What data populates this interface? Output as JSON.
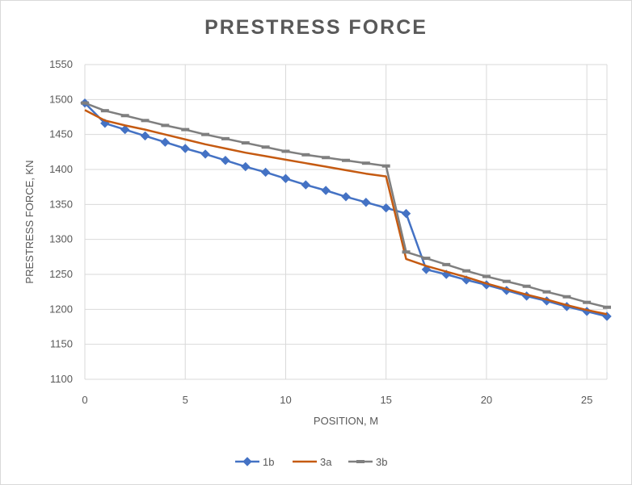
{
  "chart_data": {
    "type": "line",
    "title": "PRESTRESS FORCE",
    "xlabel": "POSITION, M",
    "ylabel": "PRESTRESS FORCE, KN",
    "xlim": [
      0,
      26
    ],
    "ylim": [
      1100,
      1550
    ],
    "xticks": [
      0,
      5,
      10,
      15,
      20,
      25
    ],
    "yticks": [
      1100,
      1150,
      1200,
      1250,
      1300,
      1350,
      1400,
      1450,
      1500,
      1550
    ],
    "grid": true,
    "legend_position": "bottom",
    "series": [
      {
        "name": "1b",
        "color": "#4472c4",
        "marker": "diamond",
        "x": [
          0,
          1,
          2,
          3,
          4,
          5,
          6,
          7,
          8,
          9,
          10,
          11,
          12,
          13,
          14,
          15,
          16,
          17,
          18,
          19,
          20,
          21,
          22,
          23,
          24,
          25,
          26
        ],
        "y": [
          1495,
          1466,
          1457,
          1448,
          1439,
          1430,
          1422,
          1413,
          1404,
          1396,
          1387,
          1378,
          1370,
          1361,
          1353,
          1345,
          1337,
          1257,
          1250,
          1242,
          1235,
          1227,
          1219,
          1212,
          1204,
          1197,
          1190
        ]
      },
      {
        "name": "3a",
        "color": "#c55a11",
        "marker": "none",
        "x": [
          0,
          1,
          2,
          3,
          4,
          5,
          6,
          7,
          8,
          9,
          10,
          11,
          12,
          13,
          14,
          15,
          16,
          17,
          18,
          19,
          20,
          21,
          22,
          23,
          24,
          25,
          26
        ],
        "y": [
          1485,
          1470,
          1463,
          1457,
          1450,
          1443,
          1436,
          1430,
          1424,
          1419,
          1414,
          1409,
          1404,
          1399,
          1394,
          1390,
          1272,
          1262,
          1254,
          1246,
          1237,
          1229,
          1221,
          1214,
          1206,
          1199,
          1193
        ]
      },
      {
        "name": "3b",
        "color": "#7f7f7f",
        "marker": "dash",
        "x": [
          0,
          1,
          2,
          3,
          4,
          5,
          6,
          7,
          8,
          9,
          10,
          11,
          12,
          13,
          14,
          15,
          16,
          17,
          18,
          19,
          20,
          21,
          22,
          23,
          24,
          25,
          26
        ],
        "y": [
          1495,
          1484,
          1477,
          1470,
          1463,
          1457,
          1450,
          1444,
          1438,
          1432,
          1426,
          1421,
          1417,
          1413,
          1409,
          1405,
          1282,
          1273,
          1264,
          1255,
          1247,
          1240,
          1233,
          1225,
          1218,
          1210,
          1203
        ]
      }
    ]
  }
}
